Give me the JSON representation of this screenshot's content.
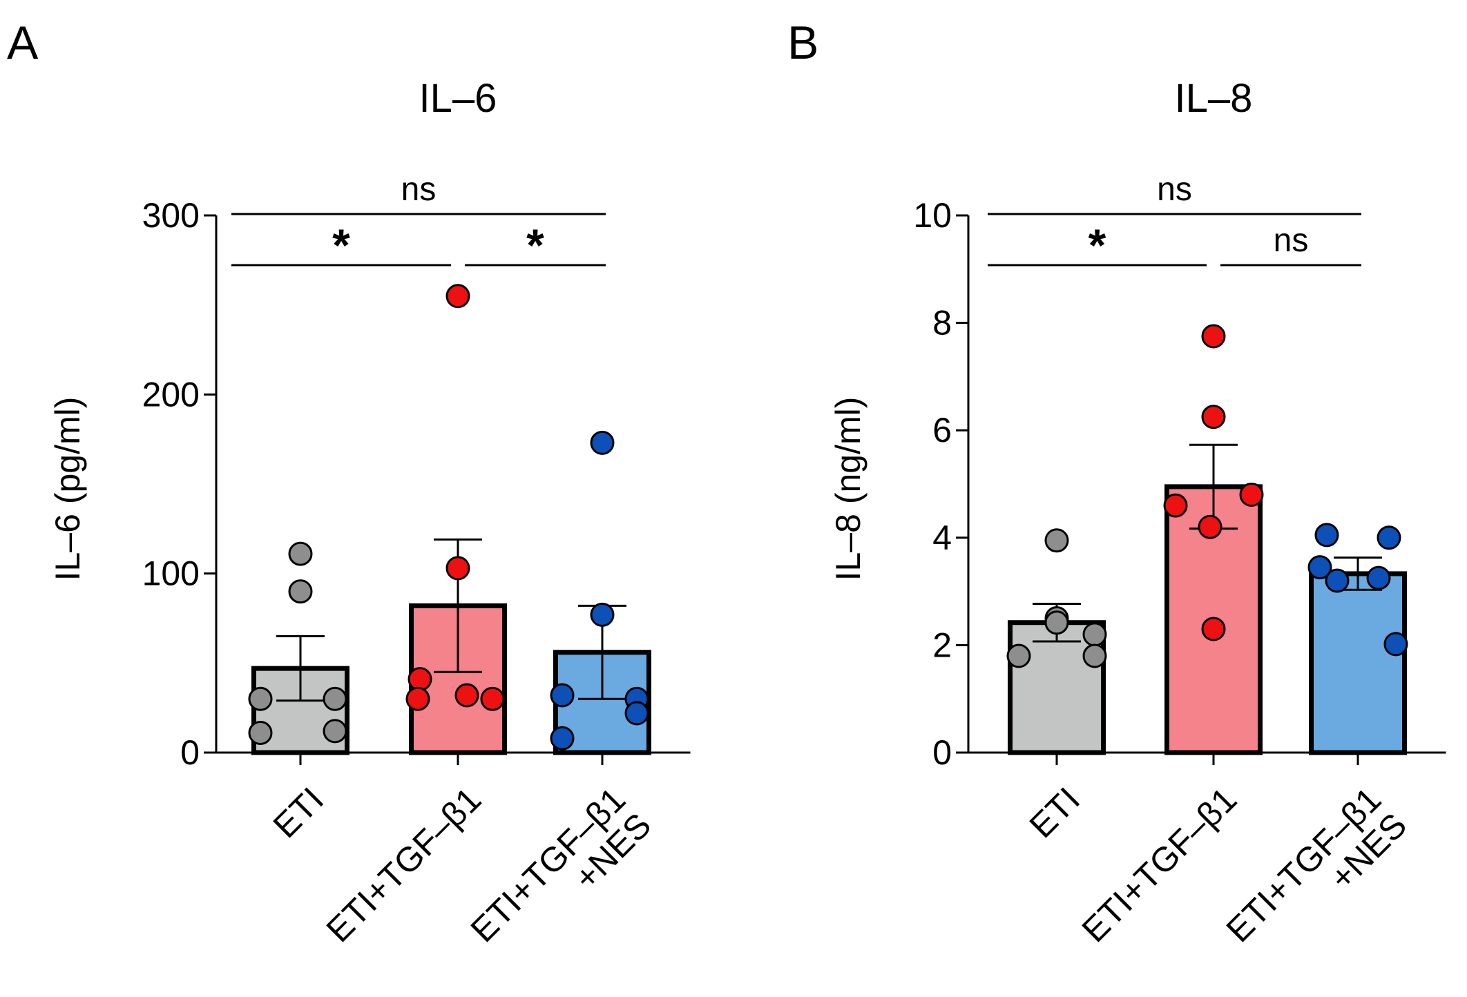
{
  "chart_data": [
    {
      "type": "bar",
      "panel": "A",
      "title": "IL–6",
      "ylabel": "IL–6 (pg/ml)",
      "xlabel": "",
      "ylim": [
        0,
        300
      ],
      "yticks": [
        0,
        100,
        200,
        300
      ],
      "ytick_labels": [
        "0",
        "100",
        "200",
        "300"
      ],
      "categories": [
        "ETI",
        "ETI+TGF–β1",
        "ETI+TGF–β1\n+NES"
      ],
      "category_lines": [
        [
          "ETI"
        ],
        [
          "ETI+TGF–β1"
        ],
        [
          "ETI+TGF–β1",
          "+NES"
        ]
      ],
      "bar_colors": [
        "#c3c5c4",
        "#f5838b",
        "#6aaae0"
      ],
      "point_colors": [
        "#8e8e8e",
        "#ee1111",
        "#0c50b8"
      ],
      "values": [
        47,
        82,
        56
      ],
      "errors": [
        18,
        37,
        26
      ],
      "points": [
        [
          111,
          90,
          30,
          30,
          11,
          12
        ],
        [
          255,
          103,
          41,
          30,
          30,
          32
        ],
        [
          173,
          77,
          32,
          30,
          8,
          22
        ]
      ],
      "comparisons": [
        {
          "from": 0,
          "to": 2,
          "label": "ns",
          "level": 2
        },
        {
          "from": 0,
          "to": 1,
          "label": "*",
          "level": 1
        },
        {
          "from": 1,
          "to": 2,
          "label": "*",
          "level": 1
        }
      ]
    },
    {
      "type": "bar",
      "panel": "B",
      "title": "IL–8",
      "ylabel": "IL–8 (ng/ml)",
      "xlabel": "",
      "ylim": [
        0,
        10
      ],
      "yticks": [
        0,
        2,
        4,
        6,
        8,
        10
      ],
      "ytick_labels": [
        "0",
        "2",
        "4",
        "6",
        "8",
        "10"
      ],
      "categories": [
        "ETI",
        "ETI+TGF–β1",
        "ETI+TGF–β1\n+NES"
      ],
      "category_lines": [
        [
          "ETI"
        ],
        [
          "ETI+TGF–β1"
        ],
        [
          "ETI+TGF–β1",
          "+NES"
        ]
      ],
      "bar_colors": [
        "#c3c5c4",
        "#f5838b",
        "#6aaae0"
      ],
      "point_colors": [
        "#8e8e8e",
        "#ee1111",
        "#0c50b8"
      ],
      "values": [
        2.42,
        4.95,
        3.33
      ],
      "errors": [
        0.35,
        0.78,
        0.3
      ],
      "points": [
        [
          3.95,
          2.5,
          2.42,
          2.2,
          1.8,
          1.8
        ],
        [
          7.75,
          6.25,
          4.8,
          4.6,
          4.2,
          2.3
        ],
        [
          4.05,
          4.0,
          3.45,
          3.25,
          3.2,
          2.02
        ]
      ],
      "comparisons": [
        {
          "from": 0,
          "to": 2,
          "label": "ns",
          "level": 2
        },
        {
          "from": 0,
          "to": 1,
          "label": "*",
          "level": 1
        },
        {
          "from": 1,
          "to": 2,
          "label": "ns",
          "level": 1
        }
      ]
    }
  ]
}
